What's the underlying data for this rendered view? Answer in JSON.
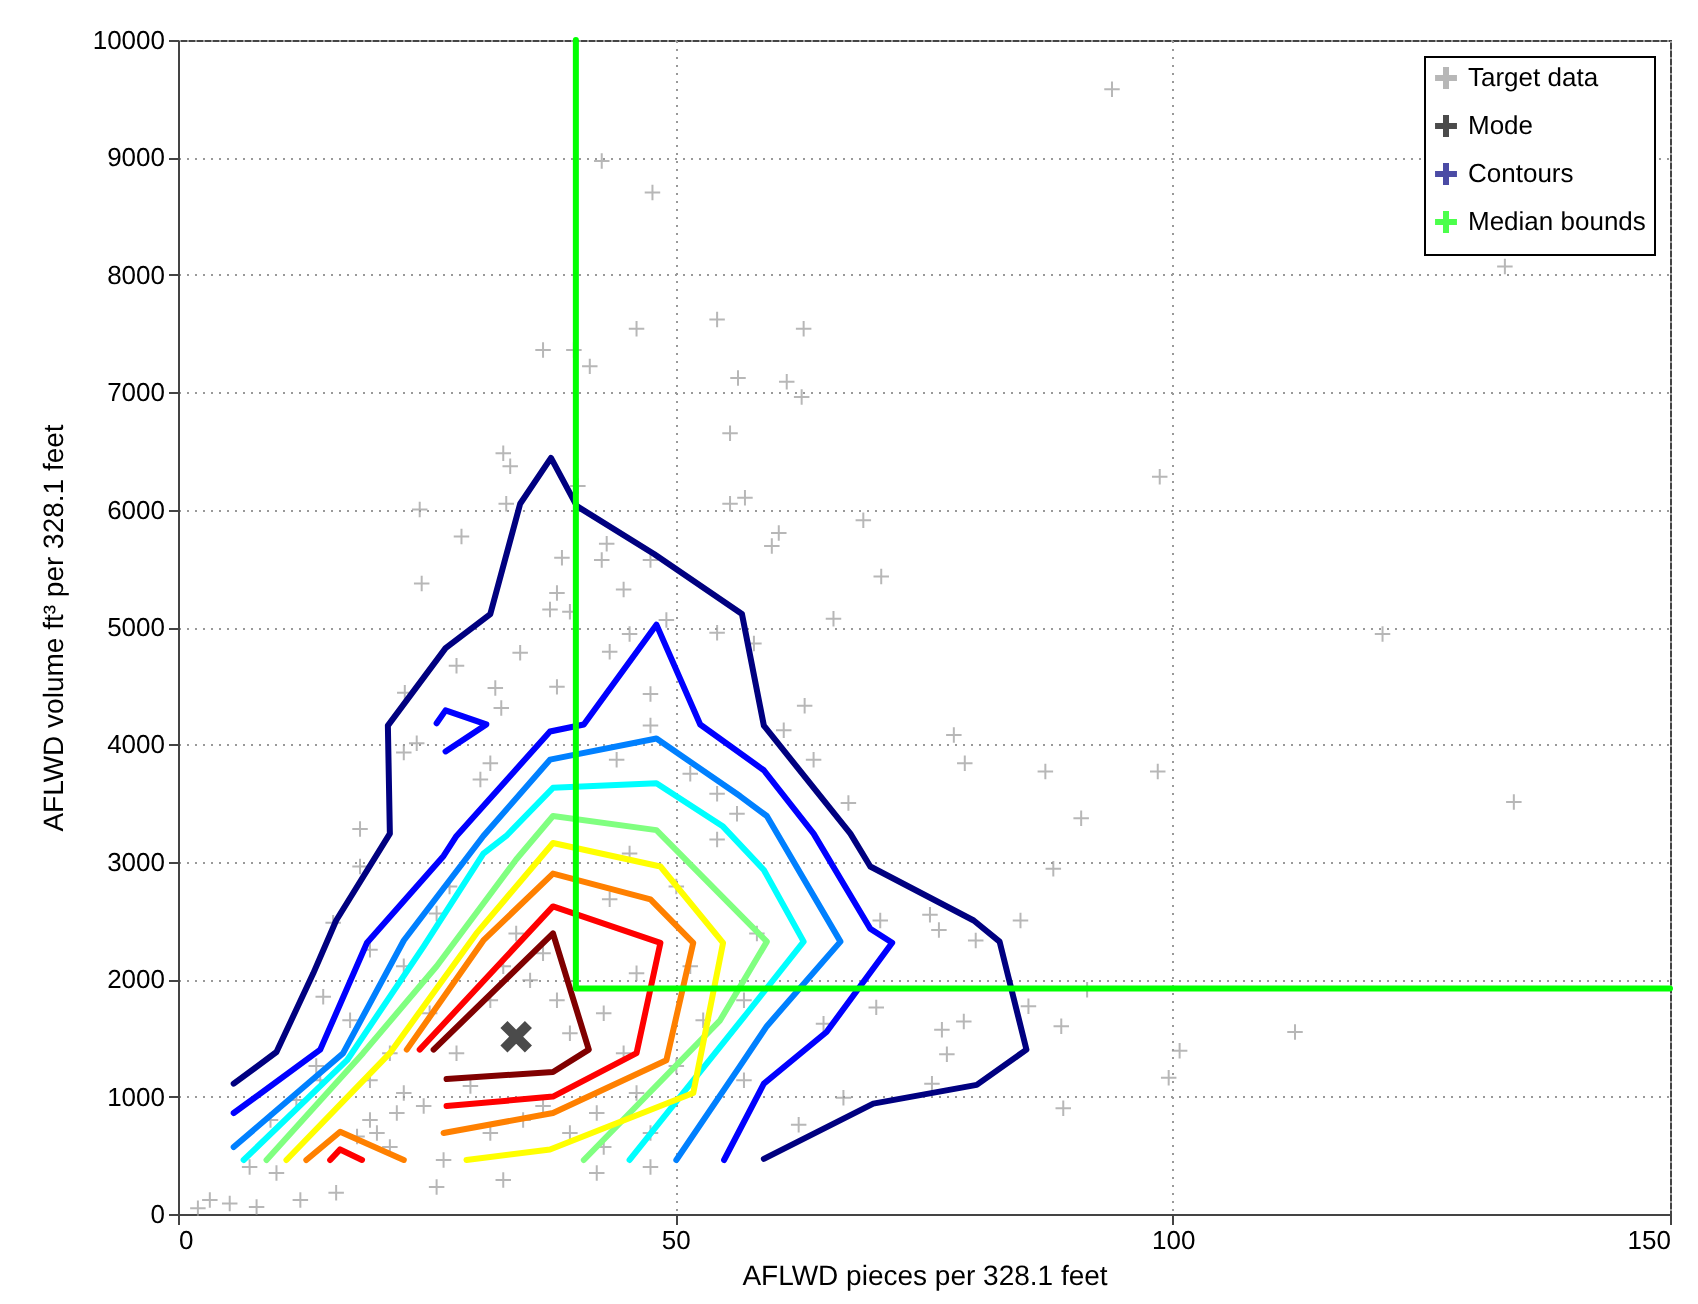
{
  "chart_data": {
    "type": "scatter",
    "xlabel": "AFLWD pieces per 328.1 feet",
    "ylabel": "AFLWD volume ft³ per 328.1 feet",
    "xlim": [
      0,
      150
    ],
    "xticks": [
      0,
      50,
      100,
      150
    ],
    "ylim": [
      0,
      10000
    ],
    "yticks": [
      0,
      1000,
      2000,
      3000,
      4000,
      5000,
      6000,
      7000,
      8000,
      9000,
      10000
    ],
    "grid": true,
    "legend": "top right",
    "series": [
      {
        "name": "Target data",
        "marker": "cross",
        "color": "#999999",
        "x": [
          36.7,
          39.8,
          41.4,
          46.1,
          54.2,
          62.9,
          56.3,
          61.2,
          62.7,
          42.6,
          47.7,
          93.9,
          133.4,
          98.7,
          121.1,
          98.5,
          134.3,
          112.3,
          100.7,
          99.6,
          68.9,
          60.4,
          59.7,
          70.7,
          65.9,
          57.9,
          63.0,
          78.0,
          60.9,
          79.1,
          87.2,
          90.8,
          63.9,
          67.4,
          88.0,
          84.7,
          75.6,
          76.5,
          80.2,
          70.6,
          91.4,
          85.5,
          88.8,
          79.0,
          76.8,
          77.3,
          70.2,
          64.9,
          75.8,
          89.0,
          66.9,
          62.4,
          32.7,
          33.4,
          40.2,
          24.3,
          33.0,
          55.5,
          55.5,
          57.0,
          28.5,
          38.6,
          43.1,
          42.6,
          47.5,
          44.8,
          24.5,
          38.1,
          37.4,
          39.4,
          45.4,
          49.1,
          54.2,
          34.4,
          43.4,
          28.0,
          47.5,
          31.9,
          38.1,
          22.8,
          32.5,
          47.5,
          22.7,
          24.0,
          31.4,
          30.4,
          44.1,
          51.5,
          54.2,
          56.2,
          18.3,
          18.3,
          15.6,
          19.3,
          14.6,
          17.3,
          13.9,
          14.3,
          11.9,
          9.3,
          7.2,
          9.9,
          3.2,
          5.2,
          7.9,
          12.3,
          15.9,
          19.3,
          20.0,
          22.0,
          21.3,
          18.0,
          22.7,
          24.7,
          26.0,
          26.7,
          31.4,
          32.7,
          34.7,
          36.7,
          29.4,
          28.0,
          31.4,
          32.7,
          35.4,
          38.1,
          34.0,
          36.7,
          39.4,
          42.8,
          44.8,
          46.1,
          43.4,
          45.4,
          50.1,
          51.5,
          52.8,
          50.1,
          46.1,
          42.1,
          39.4,
          42.8,
          47.5,
          56.9,
          56.9,
          58.2,
          54.2,
          42.1,
          47.5,
          25.3,
          21.3,
          19.3,
          22.7,
          26.0,
          27.3,
          2.0
        ],
        "values": [
          7360,
          7360,
          7220,
          7540,
          7620,
          7540,
          7120,
          7090,
          6960,
          8970,
          8700,
          9580,
          8070,
          6280,
          4940,
          3770,
          3510,
          1550,
          1390,
          1160,
          5910,
          5800,
          5690,
          5430,
          5070,
          4860,
          4330,
          4080,
          4120,
          3840,
          3770,
          3370,
          3870,
          3500,
          2940,
          2500,
          2550,
          2420,
          2330,
          2500,
          1910,
          1770,
          1600,
          1640,
          1570,
          1360,
          1760,
          1620,
          1110,
          900,
          990,
          760,
          6480,
          6370,
          6200,
          6000,
          6050,
          6650,
          6050,
          6100,
          5770,
          5590,
          5710,
          5570,
          5570,
          5320,
          5370,
          5290,
          5150,
          5130,
          4940,
          5060,
          4950,
          4780,
          4790,
          4670,
          4430,
          4480,
          4490,
          4440,
          4310,
          4160,
          3930,
          4010,
          3840,
          3700,
          3870,
          3750,
          3580,
          3410,
          3280,
          2960,
          2480,
          2250,
          1850,
          1650,
          1260,
          1140,
          970,
          800,
          400,
          350,
          120,
          90,
          60,
          120,
          180,
          800,
          690,
          860,
          570,
          660,
          1030,
          920,
          230,
          460,
          690,
          290,
          800,
          920,
          1090,
          1370,
          1820,
          2110,
          1990,
          1820,
          2390,
          2220,
          1540,
          1710,
          1370,
          2050,
          2680,
          3070,
          2790,
          2110,
          1650,
          1260,
          1030,
          860,
          690,
          570,
          690,
          1140,
          1820,
          2390,
          3190,
          350,
          400,
          1710,
          1370,
          1140,
          2110,
          2560,
          2790,
          50
        ]
      },
      {
        "name": "Mode",
        "marker": "cross",
        "color": "#000000",
        "x": [
          34
        ],
        "values": [
          1510
        ]
      },
      {
        "name": "Contours",
        "type": "line",
        "color": "#000080",
        "x": [
          5.6,
          9.9,
          13.6,
          15.9,
          21.3,
          21.1,
          26.9,
          31.4,
          34.4,
          37.5,
          40.1,
          47.9,
          56.7,
          58.9,
          67.6,
          69.6,
          80.0,
          82.6,
          85.3,
          80.3,
          69.9,
          58.9
        ],
        "values": [
          1110,
          1380,
          2050,
          2500,
          3240,
          4160,
          4820,
          5110,
          6050,
          6440,
          6030,
          5620,
          5110,
          4160,
          3240,
          2960,
          2500,
          2320,
          1400,
          1100,
          940,
          470
        ]
      },
      {
        "type": "line",
        "color": "#0000ff",
        "x": [
          5.6,
          14.3,
          19.0,
          26.7,
          28.0,
          37.4,
          40.8,
          48.1,
          52.5,
          58.9,
          63.9,
          69.6,
          71.8,
          65.2,
          58.9,
          54.9
        ],
        "values": [
          860,
          1400,
          2310,
          3050,
          3220,
          4110,
          4170,
          5020,
          4170,
          3780,
          3240,
          2430,
          2310,
          1550,
          1110,
          460
        ]
      },
      {
        "type": "line",
        "color": "#0000ff",
        "x": [
          26.0,
          26.9,
          31.0,
          26.9
        ],
        "values": [
          4180,
          4290,
          4170,
          3940
        ]
      },
      {
        "type": "line",
        "color": "#0080ff",
        "x": [
          5.6,
          16.6,
          22.7,
          30.7,
          37.4,
          48.1,
          56.5,
          59.2,
          66.6,
          59.2,
          56.5,
          50.1
        ],
        "values": [
          570,
          1370,
          2330,
          3220,
          3870,
          4050,
          3560,
          3390,
          2320,
          1600,
          1260,
          460
        ]
      },
      {
        "type": "line",
        "color": "#00ffff",
        "x": [
          6.6,
          17.0,
          24.7,
          30.7,
          33.0,
          37.7,
          48.1,
          54.8,
          58.9,
          62.9,
          57.2,
          45.4
        ],
        "values": [
          460,
          1310,
          2280,
          3070,
          3220,
          3630,
          3670,
          3300,
          2930,
          2320,
          1710,
          460
        ]
      },
      {
        "type": "line",
        "color": "#80ff80",
        "x": [
          8.9,
          18.6,
          26.0,
          34.0,
          37.7,
          48.1,
          59.2,
          54.5,
          40.8
        ],
        "values": [
          460,
          1370,
          2110,
          3020,
          3390,
          3270,
          2320,
          1650,
          460
        ]
      },
      {
        "type": "line",
        "color": "#ffff00",
        "x": [
          10.9,
          21.3,
          30.0,
          37.7,
          48.5,
          54.8,
          51.8,
          37.4,
          29.0
        ],
        "values": [
          460,
          1370,
          2390,
          3160,
          2960,
          2310,
          1030,
          550,
          460
        ]
      },
      {
        "type": "line",
        "color": "#ff8000",
        "x": [
          23.0,
          30.7,
          37.7,
          47.5,
          51.8,
          49.1,
          37.7,
          26.7
        ],
        "values": [
          1400,
          2330,
          2900,
          2680,
          2310,
          1310,
          860,
          690
        ]
      },
      {
        "type": "line",
        "color": "#ff8000",
        "x": [
          12.9,
          16.3,
          22.7
        ],
        "values": [
          460,
          700,
          460
        ]
      },
      {
        "type": "line",
        "color": "#ff0000",
        "x": [
          24.3,
          37.7,
          48.5,
          46.1,
          37.7,
          27.0
        ],
        "values": [
          1400,
          2620,
          2310,
          1370,
          1000,
          920
        ]
      },
      {
        "type": "line",
        "color": "#ff0000",
        "x": [
          15.3,
          16.3,
          18.5
        ],
        "values": [
          460,
          550,
          460
        ]
      },
      {
        "type": "line",
        "color": "#800000",
        "x": [
          25.7,
          37.7,
          41.3,
          37.7,
          27.0
        ],
        "values": [
          1400,
          2390,
          1400,
          1210,
          1150
        ]
      },
      {
        "name": "Median bounds",
        "type": "line",
        "color": "#00ff00",
        "x": [
          40,
          40,
          150
        ],
        "values": [
          10000,
          1920,
          1920
        ]
      }
    ]
  }
}
